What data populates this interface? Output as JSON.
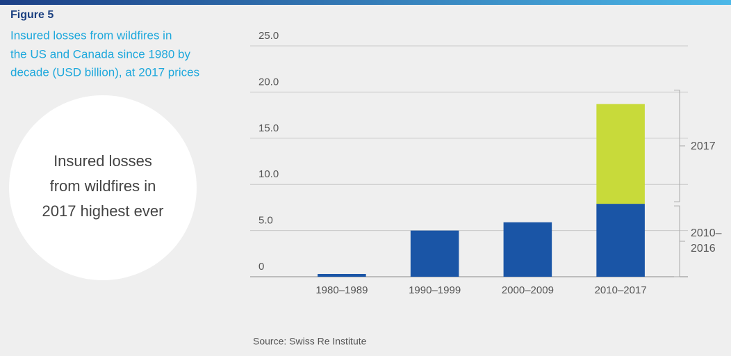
{
  "chart_data": {
    "type": "bar",
    "figure_label": "Figure 5",
    "title": [
      "Insured losses from wildfires in",
      "the US and Canada since 1980 by",
      "decade (USD billion), at 2017 prices"
    ],
    "callout": [
      "Insured losses",
      "from wildfires in",
      "2017 highest ever"
    ],
    "source": "Source: Swiss Re Institute",
    "categories": [
      "1980–1989",
      "1990–1999",
      "2000–2009",
      "2010–2017"
    ],
    "stacked": true,
    "series": [
      {
        "name": "2010–2016",
        "color": "#1a55a6",
        "values": [
          0.3,
          5.0,
          5.9,
          7.9
        ]
      },
      {
        "name": "2017",
        "color": "#c8da3a",
        "values": [
          null,
          null,
          null,
          10.8
        ]
      }
    ],
    "ylim": [
      0,
      25
    ],
    "yticks": [
      0,
      {
        "value": 5,
        "label": "5.0"
      },
      {
        "value": 10,
        "label": "10.0"
      },
      {
        "value": 15,
        "label": "15.0"
      },
      {
        "value": 20,
        "label": "20.0"
      },
      {
        "value": 25,
        "label": "25.0"
      }
    ],
    "grid": true
  }
}
